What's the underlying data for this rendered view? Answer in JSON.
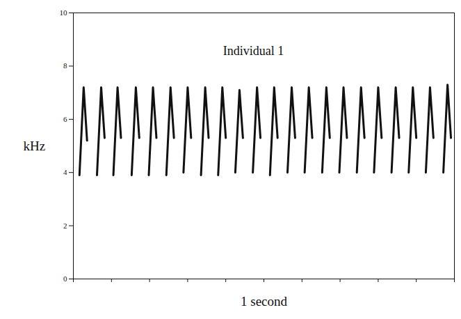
{
  "chart_data": {
    "type": "line",
    "title": "Individual 1",
    "xlabel": "1 second",
    "ylabel": "kHz",
    "color": "#111111",
    "x": [
      0.016,
      0.027,
      0.036,
      0.046,
      0.062,
      0.073,
      0.082,
      0.092,
      0.105,
      0.116,
      0.125,
      0.135,
      0.153,
      0.164,
      0.173,
      0.183,
      0.198,
      0.209,
      0.218,
      0.228,
      0.244,
      0.255,
      0.264,
      0.274,
      0.289,
      0.3,
      0.309,
      0.319,
      0.335,
      0.346,
      0.355,
      0.365,
      0.38,
      0.391,
      0.4,
      0.41,
      0.425,
      0.436,
      0.445,
      0.455,
      0.471,
      0.482,
      0.491,
      0.501,
      0.516,
      0.527,
      0.536,
      0.546,
      0.562,
      0.573,
      0.582,
      0.592,
      0.607,
      0.618,
      0.627,
      0.637,
      0.653,
      0.664,
      0.673,
      0.683,
      0.698,
      0.709,
      0.718,
      0.728,
      0.744,
      0.755,
      0.764,
      0.774,
      0.789,
      0.8,
      0.809,
      0.819,
      0.835,
      0.846,
      0.855,
      0.865,
      0.88,
      0.891,
      0.9,
      0.91,
      0.925,
      0.936,
      0.945,
      0.955,
      0.971,
      0.982,
      0.991
    ],
    "values": [
      3.9,
      7.2,
      5.2,
      null,
      3.9,
      7.2,
      5.3,
      null,
      3.9,
      7.2,
      5.3,
      null,
      3.9,
      7.2,
      5.3,
      null,
      3.9,
      7.2,
      5.3,
      null,
      3.9,
      7.2,
      5.3,
      null,
      4.0,
      7.2,
      5.3,
      null,
      3.9,
      7.2,
      5.3,
      null,
      3.9,
      7.2,
      5.3,
      null,
      4.0,
      7.1,
      5.3,
      null,
      4.0,
      7.2,
      5.3,
      null,
      3.9,
      7.2,
      5.3,
      null,
      4.0,
      7.2,
      5.3,
      null,
      4.0,
      7.2,
      5.3,
      null,
      4.0,
      7.2,
      5.3,
      null,
      4.0,
      7.2,
      5.3,
      null,
      4.0,
      7.2,
      5.3,
      null,
      4.0,
      7.2,
      5.3,
      null,
      4.0,
      7.2,
      5.3,
      null,
      4.0,
      7.2,
      5.3,
      null,
      4.0,
      7.2,
      5.3,
      null,
      4.0,
      7.3,
      5.3
    ],
    "xlim": [
      0,
      1
    ],
    "xticks": [
      0,
      0.1,
      0.2,
      0.3,
      0.4,
      0.5,
      0.6,
      0.7,
      0.8,
      0.9,
      1
    ],
    "ylim": [
      0,
      10
    ],
    "yticks": [
      0,
      2,
      4,
      6,
      8,
      10
    ],
    "tick_labels": "y",
    "grid": false
  }
}
